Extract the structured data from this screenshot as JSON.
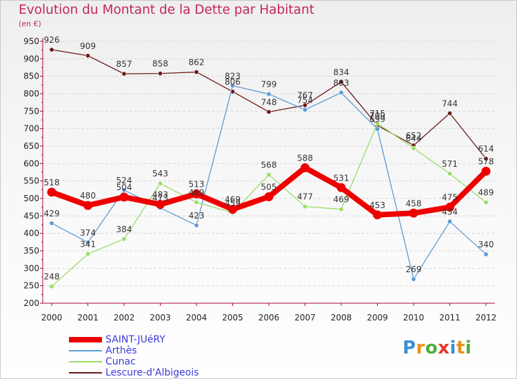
{
  "header": {
    "title": "Evolution du Montant de la Dette par Habitant",
    "unit": "(en €)"
  },
  "chart_data": {
    "type": "line",
    "x": [
      "2000",
      "2001",
      "2002",
      "2003",
      "2004",
      "2005",
      "2006",
      "2007",
      "2008",
      "2009",
      "2010",
      "2011",
      "2012"
    ],
    "ylim": [
      200,
      950
    ],
    "yticks": [
      200,
      250,
      300,
      350,
      400,
      450,
      500,
      550,
      600,
      650,
      700,
      750,
      800,
      850,
      900,
      950
    ],
    "grid": "horizontal",
    "legend_position": "bottom-left",
    "series": [
      {
        "name": "SAINT-JUéRY",
        "color": "#ee0000",
        "values": [
          518,
          480,
          504,
          483,
          513,
          469,
          505,
          588,
          531,
          453,
          458,
          475,
          578
        ]
      },
      {
        "name": "Arthès",
        "color": "#5b9bd5",
        "values": [
          429,
          374,
          524,
          473,
          423,
          823,
          799,
          754,
          803,
          699,
          269,
          434,
          340
        ]
      },
      {
        "name": "Cunac",
        "color": "#99dd66",
        "values": [
          248,
          341,
          384,
          543,
          489,
          459,
          568,
          477,
          469,
          715,
          644,
          571,
          489
        ]
      },
      {
        "name": "Lescure-d'Albigeois",
        "color": "#6b1818",
        "values": [
          926,
          909,
          857,
          858,
          862,
          806,
          748,
          767,
          834,
          709,
          652,
          744,
          614
        ]
      }
    ]
  },
  "logo": {
    "letters": [
      "P",
      "r",
      "o",
      "x",
      "i",
      "t",
      "i"
    ]
  }
}
